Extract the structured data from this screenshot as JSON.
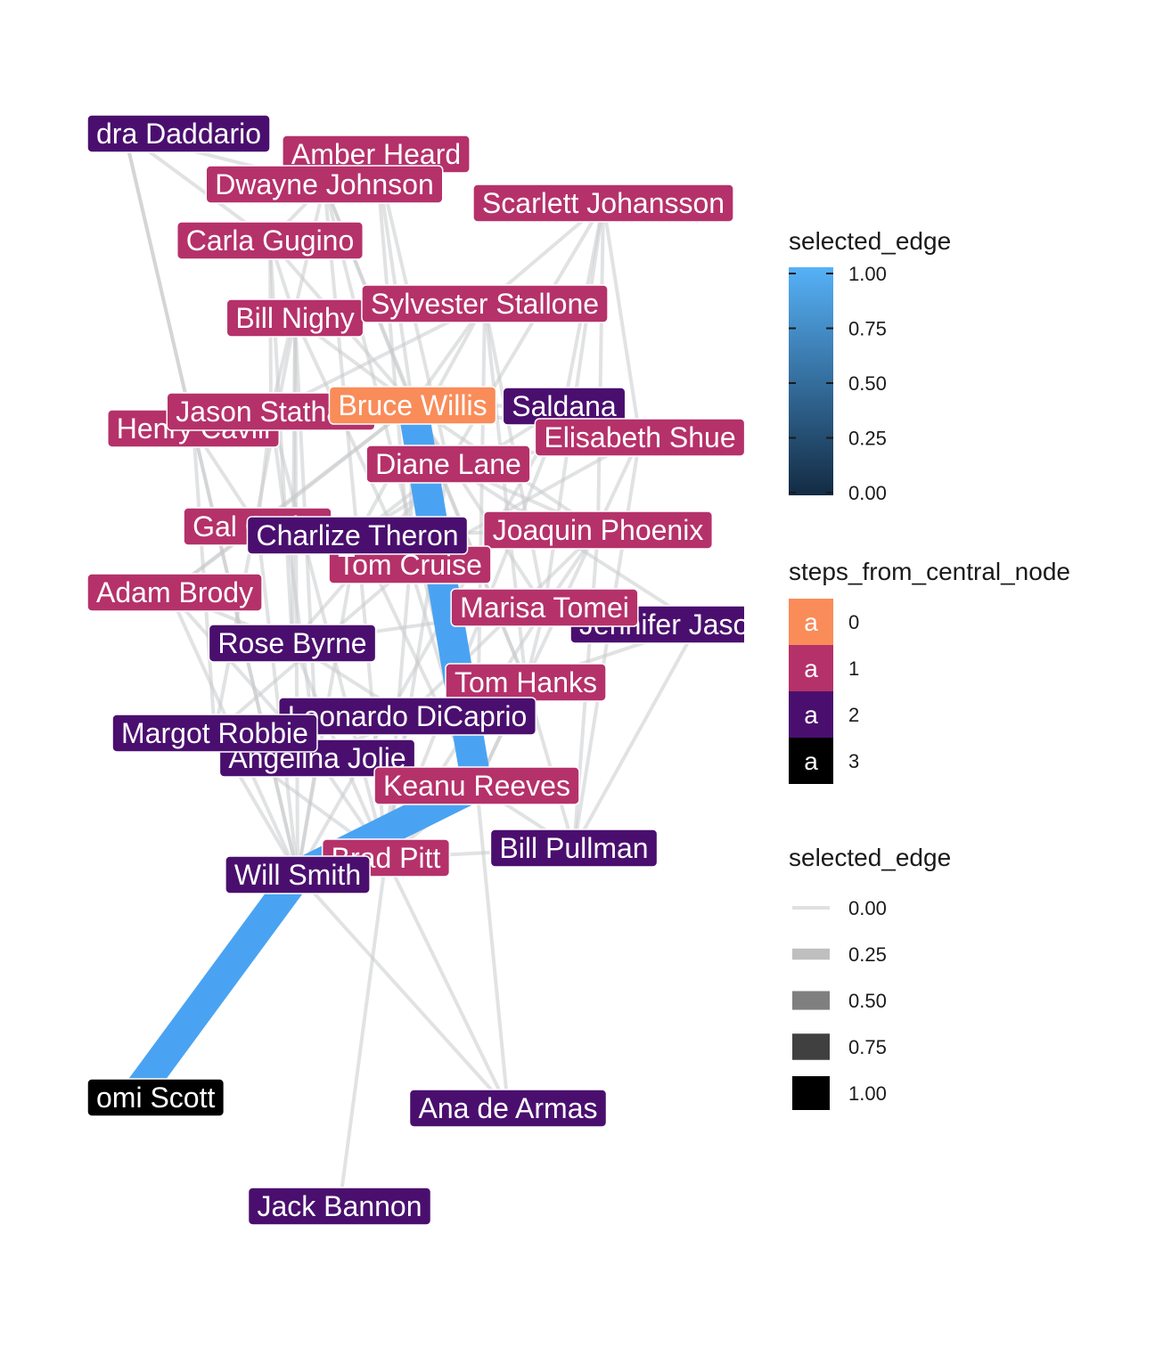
{
  "colors": {
    "step_0": "#F98C59",
    "step_1": "#B5316A",
    "step_2": "#4A0F6E",
    "step_3": "#000000",
    "selected_edge": "#4AA3F2",
    "edge_default": "#C8CACC"
  },
  "nodes": [
    {
      "id": "alexandra_daddario",
      "label": "dra Daddario",
      "step": 2
    },
    {
      "id": "amber_heard",
      "label": "Amber Heard",
      "step": 1
    },
    {
      "id": "dwayne_johnson",
      "label": "Dwayne Johnson",
      "step": 1
    },
    {
      "id": "scarlett_johansson",
      "label": "Scarlett Johansson",
      "step": 1
    },
    {
      "id": "carla_gugino",
      "label": "Carla Gugino",
      "step": 1
    },
    {
      "id": "bill_nighy",
      "label": "Bill Nighy",
      "step": 1
    },
    {
      "id": "sylvester_stallone",
      "label": "Sylvester Stallone",
      "step": 1
    },
    {
      "id": "henry_cavill",
      "label": "Henry Cavill",
      "step": 1
    },
    {
      "id": "jason_statham",
      "label": "Jason Statham",
      "step": 1
    },
    {
      "id": "zoe_saldana",
      "label": "Saldana",
      "step": 2
    },
    {
      "id": "bruce_willis",
      "label": "Bruce Willis",
      "step": 0
    },
    {
      "id": "elisabeth_shue",
      "label": "Elisabeth Shue",
      "step": 1
    },
    {
      "id": "diane_lane",
      "label": "Diane Lane",
      "step": 1
    },
    {
      "id": "gal_gadot",
      "label": "Gal Gadot",
      "step": 1
    },
    {
      "id": "joaquin_phoenix",
      "label": "Joaquin Phoenix",
      "step": 1
    },
    {
      "id": "tom_cruise",
      "label": "Tom Cruise",
      "step": 1
    },
    {
      "id": "charlize_theron",
      "label": "Charlize Theron",
      "step": 2
    },
    {
      "id": "adam_brody",
      "label": "Adam Brody",
      "step": 1
    },
    {
      "id": "jennifer_jason_leigh",
      "label": "Jennifer Jason",
      "step": 2
    },
    {
      "id": "marisa_tomei",
      "label": "Marisa Tomei",
      "step": 1
    },
    {
      "id": "rose_byrne",
      "label": "Rose Byrne",
      "step": 2
    },
    {
      "id": "tom_hanks",
      "label": "Tom Hanks",
      "step": 1
    },
    {
      "id": "leonardo_dicaprio",
      "label": "Leonardo DiCaprio",
      "step": 2
    },
    {
      "id": "angelina_jolie",
      "label": "Angelina Jolie",
      "step": 2
    },
    {
      "id": "margot_robbie",
      "label": "Margot Robbie",
      "step": 2
    },
    {
      "id": "keanu_reeves",
      "label": "Keanu Reeves",
      "step": 1
    },
    {
      "id": "bill_pullman",
      "label": "Bill Pullman",
      "step": 2
    },
    {
      "id": "brad_pitt",
      "label": "Brad Pitt",
      "step": 1
    },
    {
      "id": "will_smith",
      "label": "Will Smith",
      "step": 2
    },
    {
      "id": "naomi_scott",
      "label": "omi Scott",
      "step": 3
    },
    {
      "id": "ana_de_armas",
      "label": "Ana de Armas",
      "step": 2
    },
    {
      "id": "jack_bannon",
      "label": "Jack Bannon",
      "step": 2
    }
  ],
  "edges": [
    [
      "alexandra_daddario",
      "dwayne_johnson"
    ],
    [
      "alexandra_daddario",
      "carla_gugino"
    ],
    [
      "alexandra_daddario",
      "henry_cavill"
    ],
    [
      "alexandra_daddario",
      "will_smith"
    ],
    [
      "amber_heard",
      "dwayne_johnson"
    ],
    [
      "amber_heard",
      "bruce_willis"
    ],
    [
      "amber_heard",
      "tom_cruise"
    ],
    [
      "amber_heard",
      "diane_lane"
    ],
    [
      "dwayne_johnson",
      "carla_gugino"
    ],
    [
      "dwayne_johnson",
      "bruce_willis"
    ],
    [
      "dwayne_johnson",
      "jason_statham"
    ],
    [
      "dwayne_johnson",
      "tom_hanks"
    ],
    [
      "dwayne_johnson",
      "charlize_theron"
    ],
    [
      "dwayne_johnson",
      "keanu_reeves"
    ],
    [
      "scarlett_johansson",
      "joaquin_phoenix"
    ],
    [
      "scarlett_johansson",
      "elisabeth_shue"
    ],
    [
      "scarlett_johansson",
      "sylvester_stallone"
    ],
    [
      "scarlett_johansson",
      "marisa_tomei"
    ],
    [
      "scarlett_johansson",
      "zoe_saldana"
    ],
    [
      "scarlett_johansson",
      "diane_lane"
    ],
    [
      "carla_gugino",
      "bill_nighy"
    ],
    [
      "carla_gugino",
      "bruce_willis"
    ],
    [
      "carla_gugino",
      "rose_byrne"
    ],
    [
      "carla_gugino",
      "jason_statham"
    ],
    [
      "bill_nighy",
      "bruce_willis"
    ],
    [
      "bill_nighy",
      "margot_robbie"
    ],
    [
      "bill_nighy",
      "rose_byrne"
    ],
    [
      "bill_nighy",
      "angelina_jolie"
    ],
    [
      "bill_nighy",
      "tom_cruise"
    ],
    [
      "bill_nighy",
      "will_smith"
    ],
    [
      "sylvester_stallone",
      "bruce_willis"
    ],
    [
      "sylvester_stallone",
      "jason_statham"
    ],
    [
      "sylvester_stallone",
      "keanu_reeves"
    ],
    [
      "sylvester_stallone",
      "tom_hanks"
    ],
    [
      "sylvester_stallone",
      "marisa_tomei"
    ],
    [
      "sylvester_stallone",
      "charlize_theron"
    ],
    [
      "henry_cavill",
      "gal_gadot"
    ],
    [
      "henry_cavill",
      "margot_robbie"
    ],
    [
      "henry_cavill",
      "will_smith"
    ],
    [
      "henry_cavill",
      "jason_statham"
    ],
    [
      "jason_statham",
      "bruce_willis"
    ],
    [
      "jason_statham",
      "angelina_jolie"
    ],
    [
      "jason_statham",
      "brad_pitt"
    ],
    [
      "jason_statham",
      "gal_gadot"
    ],
    [
      "zoe_saldana",
      "bruce_willis"
    ],
    [
      "zoe_saldana",
      "brad_pitt"
    ],
    [
      "zoe_saldana",
      "will_smith"
    ],
    [
      "zoe_saldana",
      "charlize_theron"
    ],
    [
      "bruce_willis",
      "elisabeth_shue"
    ],
    [
      "bruce_willis",
      "diane_lane"
    ],
    [
      "bruce_willis",
      "joaquin_phoenix"
    ],
    [
      "bruce_willis",
      "tom_cruise"
    ],
    [
      "bruce_willis",
      "marisa_tomei"
    ],
    [
      "bruce_willis",
      "tom_hanks"
    ],
    [
      "bruce_willis",
      "gal_gadot"
    ],
    [
      "bruce_willis",
      "adam_brody"
    ],
    [
      "elisabeth_shue",
      "diane_lane"
    ],
    [
      "elisabeth_shue",
      "bill_pullman"
    ],
    [
      "elisabeth_shue",
      "tom_cruise"
    ],
    [
      "elisabeth_shue",
      "keanu_reeves"
    ],
    [
      "diane_lane",
      "charlize_theron"
    ],
    [
      "diane_lane",
      "joaquin_phoenix"
    ],
    [
      "diane_lane",
      "brad_pitt"
    ],
    [
      "diane_lane",
      "rose_byrne"
    ],
    [
      "gal_gadot",
      "charlize_theron"
    ],
    [
      "gal_gadot",
      "adam_brody"
    ],
    [
      "gal_gadot",
      "will_smith"
    ],
    [
      "joaquin_phoenix",
      "charlize_theron"
    ],
    [
      "joaquin_phoenix",
      "marisa_tomei"
    ],
    [
      "joaquin_phoenix",
      "bill_pullman"
    ],
    [
      "joaquin_phoenix",
      "leonardo_dicaprio"
    ],
    [
      "tom_cruise",
      "charlize_theron"
    ],
    [
      "tom_cruise",
      "keanu_reeves"
    ],
    [
      "tom_cruise",
      "brad_pitt"
    ],
    [
      "tom_cruise",
      "margot_robbie"
    ],
    [
      "charlize_theron",
      "keanu_reeves"
    ],
    [
      "charlize_theron",
      "brad_pitt"
    ],
    [
      "charlize_theron",
      "will_smith"
    ],
    [
      "adam_brody",
      "rose_byrne"
    ],
    [
      "adam_brody",
      "angelina_jolie"
    ],
    [
      "adam_brody",
      "will_smith"
    ],
    [
      "jennifer_jason_leigh",
      "marisa_tomei"
    ],
    [
      "jennifer_jason_leigh",
      "bill_pullman"
    ],
    [
      "jennifer_jason_leigh",
      "tom_hanks"
    ],
    [
      "jennifer_jason_leigh",
      "diane_lane"
    ],
    [
      "marisa_tomei",
      "tom_hanks"
    ],
    [
      "marisa_tomei",
      "brad_pitt"
    ],
    [
      "marisa_tomei",
      "rose_byrne"
    ],
    [
      "rose_byrne",
      "leonardo_dicaprio"
    ],
    [
      "rose_byrne",
      "brad_pitt"
    ],
    [
      "tom_hanks",
      "leonardo_dicaprio"
    ],
    [
      "tom_hanks",
      "bill_pullman"
    ],
    [
      "tom_hanks",
      "keanu_reeves"
    ],
    [
      "leonardo_dicaprio",
      "brad_pitt"
    ],
    [
      "leonardo_dicaprio",
      "margot_robbie"
    ],
    [
      "leonardo_dicaprio",
      "angelina_jolie"
    ],
    [
      "angelina_jolie",
      "brad_pitt"
    ],
    [
      "angelina_jolie",
      "will_smith"
    ],
    [
      "margot_robbie",
      "brad_pitt"
    ],
    [
      "margot_robbie",
      "will_smith"
    ],
    [
      "keanu_reeves",
      "brad_pitt"
    ],
    [
      "bill_pullman",
      "brad_pitt"
    ],
    [
      "brad_pitt",
      "ana_de_armas"
    ],
    [
      "brad_pitt",
      "jack_bannon"
    ],
    [
      "will_smith",
      "ana_de_armas"
    ],
    [
      "keanu_reeves",
      "ana_de_armas"
    ],
    [
      "bill_pullman",
      "keanu_reeves"
    ]
  ],
  "selected_path": [
    "bruce_willis",
    "keanu_reeves",
    "will_smith",
    "naomi_scott"
  ],
  "legend": {
    "colorbar": {
      "title": "selected_edge",
      "ticks": [
        "1.00",
        "0.75",
        "0.50",
        "0.25",
        "0.00"
      ]
    },
    "steps": {
      "title": "steps_from_central_node",
      "key_letter": "a",
      "items": [
        {
          "value": "0",
          "color": "#F98C59"
        },
        {
          "value": "1",
          "color": "#B5316A"
        },
        {
          "value": "2",
          "color": "#4A0F6E"
        },
        {
          "value": "3",
          "color": "#000000"
        }
      ]
    },
    "alpha": {
      "title": "selected_edge",
      "items": [
        {
          "value": "0.00",
          "opacity": 0.0
        },
        {
          "value": "0.25",
          "opacity": 0.25
        },
        {
          "value": "0.50",
          "opacity": 0.5
        },
        {
          "value": "0.75",
          "opacity": 0.75
        },
        {
          "value": "1.00",
          "opacity": 1.0
        }
      ]
    }
  }
}
